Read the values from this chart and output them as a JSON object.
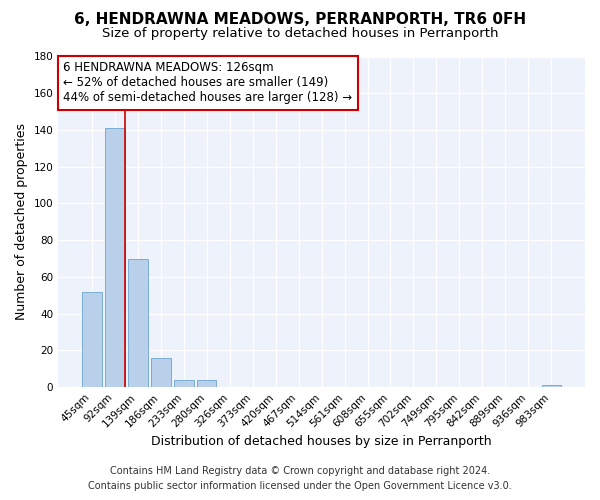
{
  "title": "6, HENDRAWNA MEADOWS, PERRANPORTH, TR6 0FH",
  "subtitle": "Size of property relative to detached houses in Perranporth",
  "xlabel": "Distribution of detached houses by size in Perranporth",
  "ylabel": "Number of detached properties",
  "bar_labels": [
    "45sqm",
    "92sqm",
    "139sqm",
    "186sqm",
    "233sqm",
    "280sqm",
    "326sqm",
    "373sqm",
    "420sqm",
    "467sqm",
    "514sqm",
    "561sqm",
    "608sqm",
    "655sqm",
    "702sqm",
    "749sqm",
    "795sqm",
    "842sqm",
    "889sqm",
    "936sqm",
    "983sqm"
  ],
  "bar_values": [
    52,
    141,
    70,
    16,
    4,
    4,
    0,
    0,
    0,
    0,
    0,
    0,
    0,
    0,
    0,
    0,
    0,
    0,
    0,
    0,
    1
  ],
  "bar_color": "#b8d0ea",
  "bar_edge_color": "#7aadd4",
  "vline_color": "#cc0000",
  "annotation_line1": "6 HENDRAWNA MEADOWS: 126sqm",
  "annotation_line2": "← 52% of detached houses are smaller (149)",
  "annotation_line3": "44% of semi-detached houses are larger (128) →",
  "annotation_box_edge_color": "#cc0000",
  "ylim": [
    0,
    180
  ],
  "yticks": [
    0,
    20,
    40,
    60,
    80,
    100,
    120,
    140,
    160,
    180
  ],
  "footer_line1": "Contains HM Land Registry data © Crown copyright and database right 2024.",
  "footer_line2": "Contains public sector information licensed under the Open Government Licence v3.0.",
  "bg_color": "#ffffff",
  "plot_bg_color": "#eef2fb",
  "grid_color": "#ffffff",
  "title_fontsize": 11,
  "subtitle_fontsize": 9.5,
  "axis_label_fontsize": 9,
  "tick_fontsize": 7.5,
  "annotation_fontsize": 8.5,
  "footer_fontsize": 7
}
